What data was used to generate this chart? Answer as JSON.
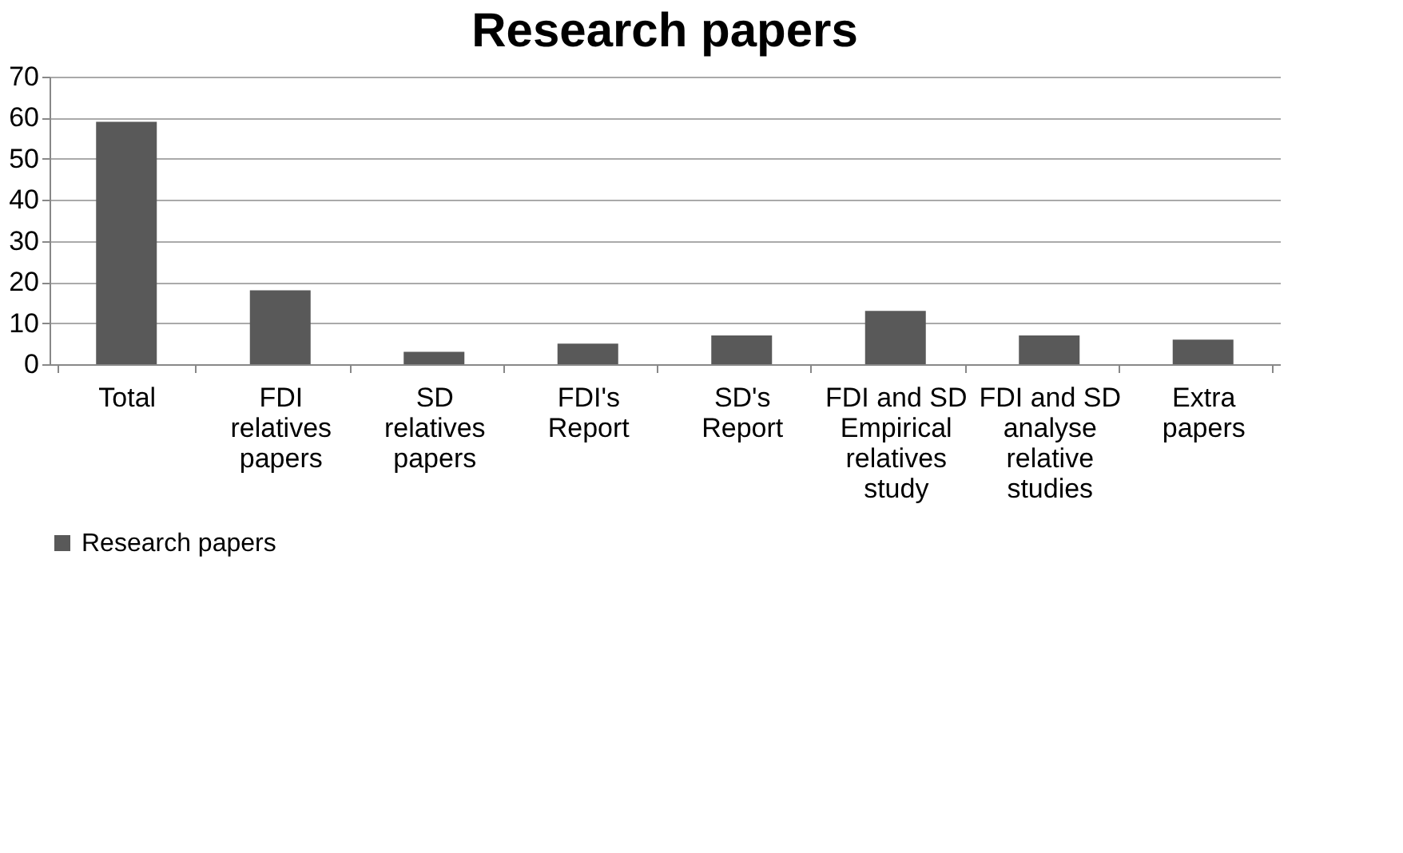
{
  "chart_data": {
    "type": "bar",
    "title": "Research papers",
    "categories": [
      "Total",
      "FDI relatives papers",
      "SD relatives papers",
      "FDI's Report",
      "SD's Report",
      "FDI and SD Empirical relatives study",
      "FDI and SD analyse relative studies",
      "Extra papers"
    ],
    "series": [
      {
        "name": "Research papers",
        "color": "#595959",
        "values": [
          59,
          18,
          3,
          5,
          7,
          13,
          7,
          6
        ]
      }
    ],
    "ylim": [
      0,
      70
    ],
    "yticks": [
      0,
      10,
      20,
      30,
      40,
      50,
      60,
      70
    ],
    "grid": "y",
    "legend": "bottom left"
  }
}
